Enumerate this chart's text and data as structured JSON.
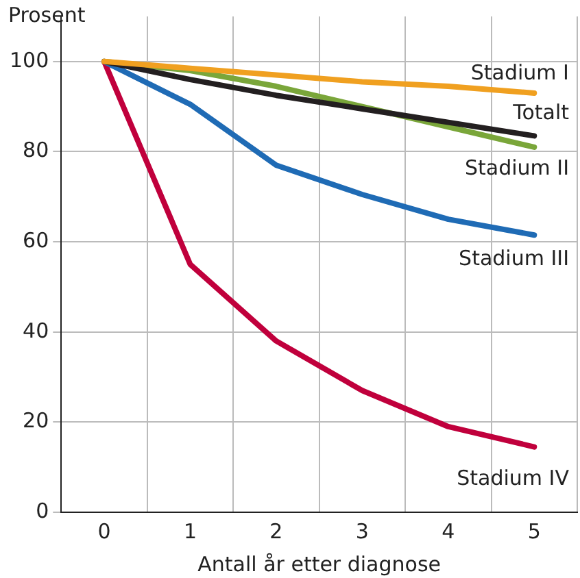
{
  "chart_data": {
    "type": "line",
    "ylabel": "Prosent",
    "xlabel": "Antall år etter diagnose",
    "categories": [
      "0",
      "1",
      "2",
      "3",
      "4",
      "5"
    ],
    "series": [
      {
        "name": "Stadium I",
        "color": "#f0a020",
        "values": [
          100,
          98.5,
          97,
          95.5,
          94.5,
          93
        ]
      },
      {
        "name": "Totalt",
        "color": "#231f20",
        "values": [
          100,
          96,
          92.5,
          89.5,
          86.5,
          83.5
        ]
      },
      {
        "name": "Stadium II",
        "color": "#7aa63a",
        "values": [
          100,
          98,
          94.5,
          90,
          85.5,
          81
        ]
      },
      {
        "name": "Stadium III",
        "color": "#1f6bb5",
        "values": [
          100,
          90.5,
          77,
          70.5,
          65,
          61.5
        ]
      },
      {
        "name": "Stadium IV",
        "color": "#c0003c",
        "values": [
          100,
          55,
          38,
          27,
          19,
          14.5
        ]
      }
    ],
    "ylim": [
      0,
      110
    ],
    "yticks": [
      0,
      20,
      40,
      60,
      80,
      100
    ],
    "grid": true,
    "legend": false,
    "marker": "none",
    "line_style": "solid"
  }
}
